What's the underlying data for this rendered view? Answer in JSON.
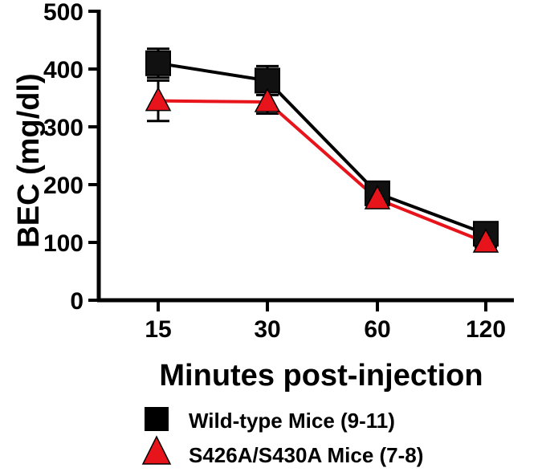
{
  "chart_data": {
    "type": "line",
    "categories": [
      "15",
      "30",
      "60",
      "120"
    ],
    "xlabel": "Minutes post-injection",
    "ylabel": "BEC (mg/dl)",
    "ylim": [
      0,
      500
    ],
    "yticks": [
      "0",
      "100",
      "200",
      "300",
      "400",
      "500"
    ],
    "grid": false,
    "legend_position": "bottom",
    "series": [
      {
        "name": "Wild-type Mice (9-11)",
        "marker": "square",
        "color": "#000000",
        "values": [
          410,
          380,
          185,
          115
        ],
        "errors": [
          25,
          25,
          15,
          10
        ]
      },
      {
        "name": "S426A/S430A Mice (7-8)",
        "marker": "triangle",
        "color": "#e8141c",
        "values": [
          345,
          343,
          175,
          100
        ],
        "errors": [
          35,
          20,
          10,
          8
        ]
      }
    ]
  }
}
